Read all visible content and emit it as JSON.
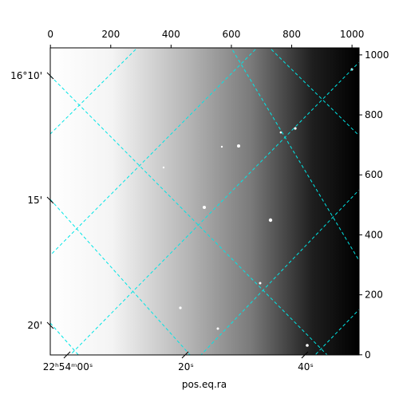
{
  "chart_data": {
    "type": "image",
    "xlabel": "pos.eq.ra",
    "xlim": [
      -0.5,
      1023.5
    ],
    "ylim": [
      -0.5,
      1023.5
    ],
    "xticks": [
      0,
      200,
      400,
      600,
      800,
      1000
    ],
    "yticks": [
      0,
      200,
      400,
      600,
      800,
      1000
    ],
    "ra_tick_labels": [
      "22ʰ54ᵐ00ˢ",
      "20ˢ",
      "40ˢ"
    ],
    "dec_tick_labels": [
      "16°10'",
      "15'",
      "20'"
    ],
    "grid_color": "#00e5e5"
  }
}
